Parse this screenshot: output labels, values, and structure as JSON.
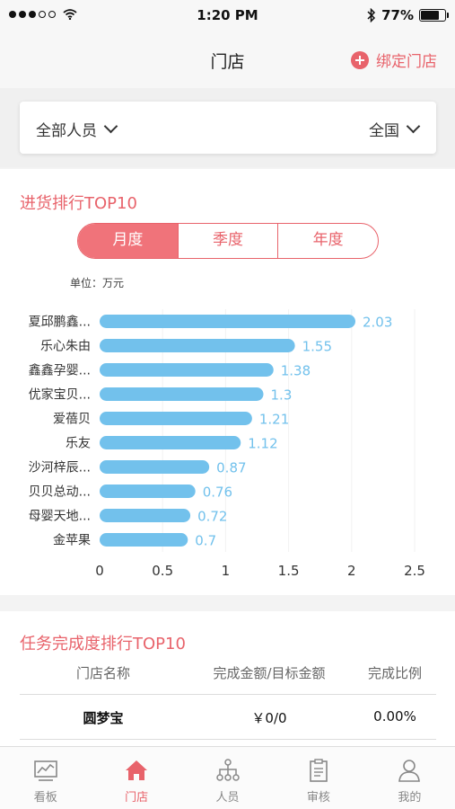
{
  "status_bar": {
    "time": "1:20 PM",
    "battery": "77%",
    "battery_level": 0.77
  },
  "nav": {
    "title": "门店",
    "bind_label": "绑定门店"
  },
  "filters": {
    "people": "全部人员",
    "region": "全国"
  },
  "purchase": {
    "title": "进货排行TOP10",
    "tabs": [
      "月度",
      "季度",
      "年度"
    ],
    "unit": "单位：万元"
  },
  "chart_data": {
    "type": "bar",
    "orientation": "horizontal",
    "categories": [
      "夏邱鹏鑫...",
      "乐心朱由",
      "鑫鑫孕婴...",
      "优家宝贝...",
      "爱蓓贝",
      "乐友",
      "沙河梓辰...",
      "贝贝总动...",
      "母婴天地...",
      "金苹果"
    ],
    "values": [
      2.03,
      1.55,
      1.38,
      1.3,
      1.21,
      1.12,
      0.87,
      0.76,
      0.72,
      0.7
    ],
    "value_labels": [
      "2.03",
      "1.55",
      "1.38",
      "1.3",
      "1.21",
      "1.12",
      "0.87",
      "0.76",
      "0.72",
      "0.7"
    ],
    "x_ticks": [
      "0",
      "0.5",
      "1",
      "1.5",
      "2",
      "2.5"
    ],
    "xlim": [
      0,
      2.5
    ],
    "bar_color": "#72c1ec",
    "label_color": "#72c1ec"
  },
  "task": {
    "title": "任务完成度排行TOP10",
    "headers": [
      "门店名称",
      "完成金额/目标金额",
      "完成比例"
    ],
    "rows": [
      {
        "name": "圆梦宝",
        "amount": "￥0/0",
        "ratio": "0.00%"
      }
    ]
  },
  "tab_bar": {
    "items": [
      {
        "label": "看板",
        "icon": "dashboard-icon"
      },
      {
        "label": "门店",
        "icon": "home-icon"
      },
      {
        "label": "人员",
        "icon": "org-chart-icon"
      },
      {
        "label": "审核",
        "icon": "clipboard-icon"
      },
      {
        "label": "我的",
        "icon": "user-icon"
      }
    ]
  }
}
